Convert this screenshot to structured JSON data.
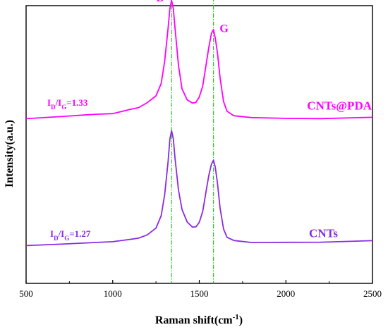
{
  "chart_data": {
    "type": "line",
    "xlabel": "Raman shift(cm⁻¹)",
    "xlabel_main": "Raman shift(cm",
    "xlabel_sup": "-1",
    "xlabel_tail": ")",
    "ylabel": "Intensity(a.u.)",
    "xlim": [
      500,
      2500
    ],
    "ylim": [
      0,
      100
    ],
    "x_ticks": [
      500,
      1000,
      1500,
      2000,
      2500
    ],
    "x_tick_labels": [
      "500",
      "1000",
      "1500",
      "2000",
      "2500"
    ],
    "y_ticks_shown": false,
    "grid": false,
    "reference_lines": [
      {
        "peak": "D",
        "x": 1340
      },
      {
        "peak": "G",
        "x": 1582
      }
    ],
    "peak_labels": {
      "D": "D",
      "G": "G"
    },
    "series": [
      {
        "name": "CNTs@PDA",
        "color": "#ff00ff",
        "ratio": {
          "main": "I",
          "sub1": "D",
          "slash": "/I",
          "sub2": "G",
          "value": "=1.33"
        },
        "x": [
          500,
          700,
          900,
          1000,
          1100,
          1150,
          1200,
          1250,
          1280,
          1300,
          1320,
          1330,
          1340,
          1350,
          1360,
          1380,
          1400,
          1430,
          1460,
          1480,
          1500,
          1520,
          1540,
          1555,
          1570,
          1582,
          1592,
          1605,
          1620,
          1640,
          1660,
          1700,
          1800,
          2000,
          2200,
          2500
        ],
        "y": [
          59.3,
          60.0,
          60.8,
          61.0,
          62.5,
          63.2,
          65.0,
          67.5,
          72.0,
          80.0,
          92.0,
          99.0,
          102.0,
          99.0,
          92.0,
          78.5,
          70.0,
          66.0,
          64.8,
          65.0,
          67.0,
          71.0,
          79.0,
          85.0,
          90.0,
          91.5,
          88.5,
          83.0,
          74.0,
          65.5,
          62.0,
          60.3,
          59.6,
          59.3,
          59.2,
          59.7
        ]
      },
      {
        "name": "CNTs",
        "color": "#8a2be2",
        "ratio": {
          "main": "I",
          "sub1": "D",
          "slash": "/I",
          "sub2": "G",
          "value": "=1.27"
        },
        "x": [
          500,
          700,
          900,
          1000,
          1100,
          1150,
          1200,
          1250,
          1280,
          1300,
          1320,
          1330,
          1340,
          1350,
          1360,
          1380,
          1400,
          1430,
          1460,
          1480,
          1500,
          1520,
          1540,
          1555,
          1570,
          1582,
          1592,
          1605,
          1620,
          1640,
          1660,
          1700,
          1800,
          2000,
          2200,
          2500
        ],
        "y": [
          13.5,
          14.0,
          14.6,
          14.9,
          15.8,
          16.3,
          17.5,
          20.0,
          24.5,
          32.0,
          44.0,
          52.0,
          55.0,
          52.0,
          45.0,
          33.5,
          26.5,
          22.0,
          20.2,
          20.3,
          22.0,
          26.0,
          33.5,
          39.0,
          43.0,
          44.5,
          42.0,
          36.0,
          27.0,
          19.5,
          16.5,
          15.3,
          14.6,
          14.7,
          14.8,
          15.4
        ]
      }
    ]
  }
}
